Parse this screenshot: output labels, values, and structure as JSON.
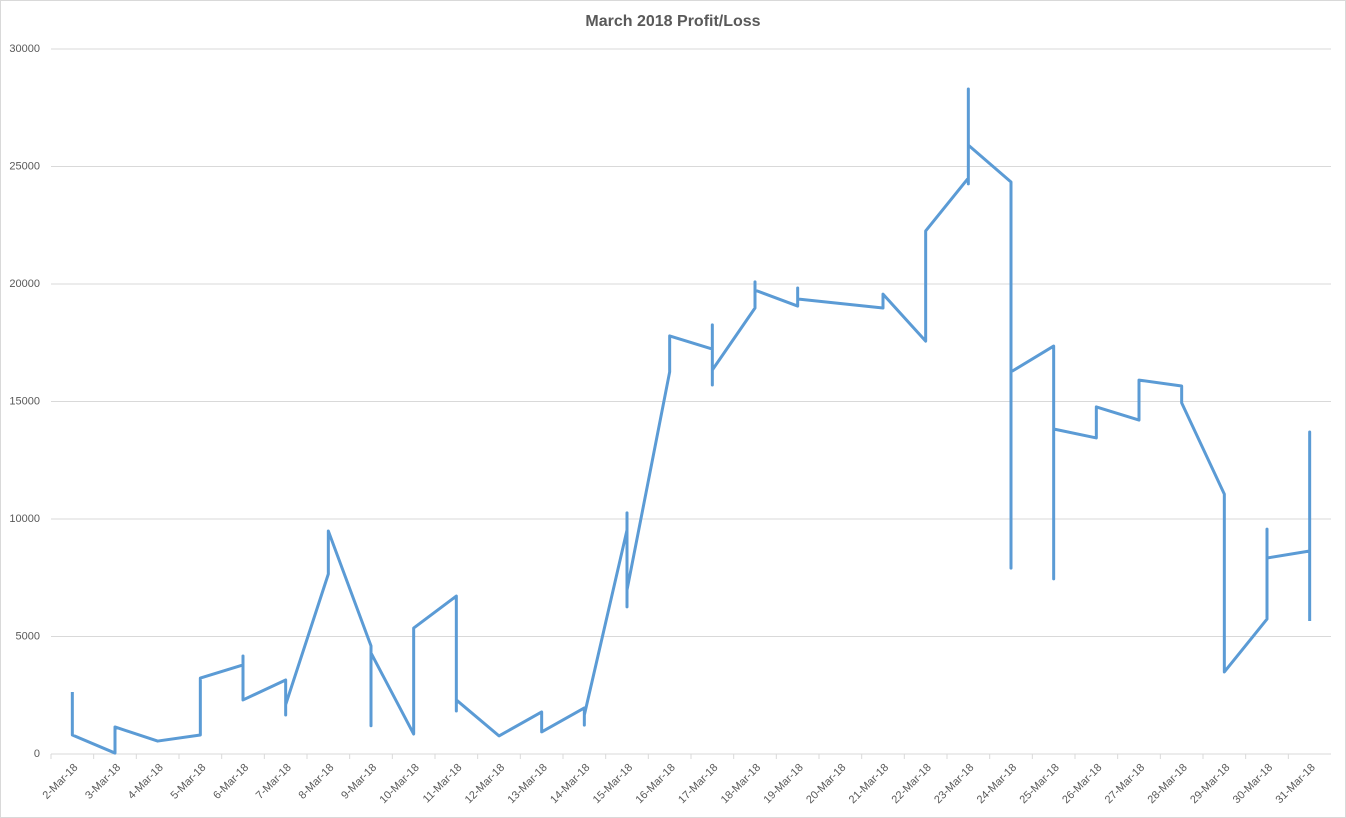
{
  "chart_data": {
    "type": "line",
    "title": "March 2018 Profit/Loss",
    "categories": [
      "2-Mar-18",
      "3-Mar-18",
      "4-Mar-18",
      "5-Mar-18",
      "6-Mar-18",
      "7-Mar-18",
      "8-Mar-18",
      "9-Mar-18",
      "10-Mar-18",
      "11-Mar-18",
      "12-Mar-18",
      "13-Mar-18",
      "14-Mar-18",
      "15-Mar-18",
      "16-Mar-18",
      "17-Mar-18",
      "18-Mar-18",
      "19-Mar-18",
      "20-Mar-18",
      "21-Mar-18",
      "22-Mar-18",
      "23-Mar-18",
      "24-Mar-18",
      "25-Mar-18",
      "26-Mar-18",
      "27-Mar-18",
      "28-Mar-18",
      "29-Mar-18",
      "30-Mar-18",
      "31-Mar-18"
    ],
    "series": [
      {
        "color": "#5b9bd5",
        "x": [
          "2-Mar-18",
          "2-Mar-18",
          "3-Mar-18",
          "3-Mar-18",
          "4-Mar-18",
          "5-Mar-18",
          "5-Mar-18",
          "6-Mar-18",
          "6-Mar-18",
          "6-Mar-18",
          "7-Mar-18",
          "7-Mar-18",
          "7-Mar-18",
          "8-Mar-18",
          "8-Mar-18",
          "9-Mar-18",
          "9-Mar-18",
          "9-Mar-18",
          "10-Mar-18",
          "10-Mar-18",
          "11-Mar-18",
          "11-Mar-18",
          "11-Mar-18",
          "12-Mar-18",
          "13-Mar-18",
          "13-Mar-18",
          "14-Mar-18",
          "14-Mar-18",
          "14-Mar-18",
          "15-Mar-18",
          "15-Mar-18",
          "15-Mar-18",
          "15-Mar-18",
          "16-Mar-18",
          "16-Mar-18",
          "17-Mar-18",
          "17-Mar-18",
          "17-Mar-18",
          "17-Mar-18",
          "18-Mar-18",
          "18-Mar-18",
          "18-Mar-18",
          "19-Mar-18",
          "19-Mar-18",
          "19-Mar-18",
          "21-Mar-18",
          "21-Mar-18",
          "22-Mar-18",
          "22-Mar-18",
          "23-Mar-18",
          "23-Mar-18",
          "23-Mar-18",
          "23-Mar-18",
          "24-Mar-18",
          "24-Mar-18",
          "24-Mar-18",
          "25-Mar-18",
          "25-Mar-18",
          "25-Mar-18",
          "26-Mar-18",
          "26-Mar-18",
          "27-Mar-18",
          "27-Mar-18",
          "28-Mar-18",
          "28-Mar-18",
          "29-Mar-18",
          "29-Mar-18",
          "30-Mar-18",
          "30-Mar-18",
          "30-Mar-18",
          "31-Mar-18",
          "31-Mar-18",
          "31-Mar-18"
        ],
        "values": [
          2640,
          810,
          40,
          1150,
          550,
          810,
          3230,
          3790,
          4170,
          2300,
          3150,
          1660,
          2100,
          7660,
          9490,
          4600,
          1200,
          4300,
          850,
          5360,
          6720,
          1830,
          2300,
          770,
          1790,
          940,
          1960,
          1230,
          1660,
          9530,
          10260,
          6260,
          6980,
          16260,
          17790,
          17230,
          18260,
          15700,
          16340,
          18980,
          20090,
          19740,
          19060,
          19830,
          19360,
          18980,
          19570,
          17570,
          22260,
          24510,
          24260,
          28300,
          25910,
          24340,
          7910,
          16260,
          17360,
          7450,
          13830,
          13450,
          14770,
          14210,
          15910,
          15660,
          14940,
          11060,
          3490,
          5740,
          9570,
          8340,
          8640,
          13700,
          5660
        ]
      }
    ],
    "ylim": [
      0,
      30000
    ],
    "yticks": [
      0,
      5000,
      10000,
      15000,
      20000,
      25000,
      30000
    ],
    "grid": true
  }
}
